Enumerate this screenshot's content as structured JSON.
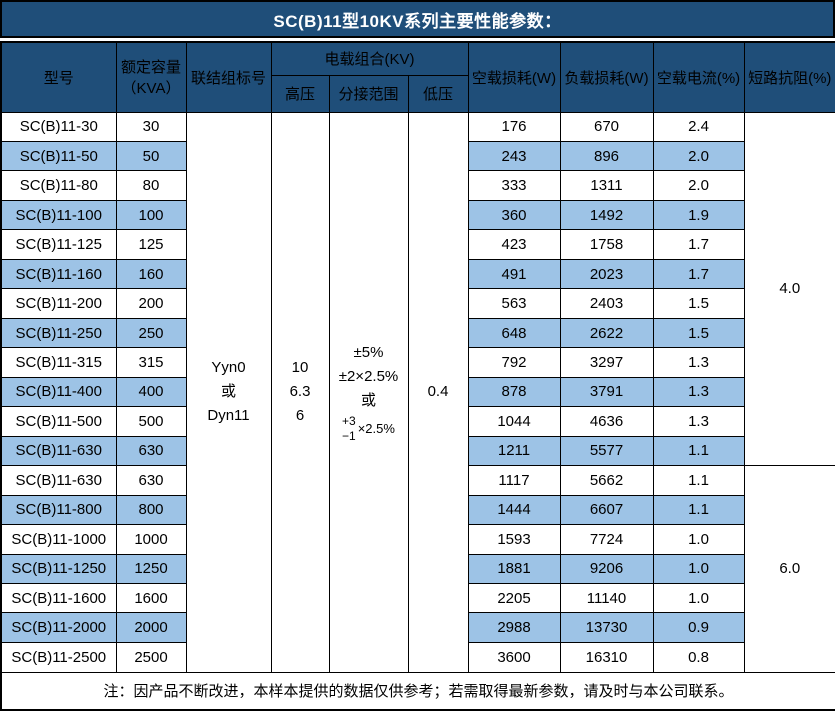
{
  "title": "SC(B)11型10KV系列主要性能参数：",
  "footer_note": "注：因产品不断改进，本样本提供的数据仅供参考；若需取得最新参数，请及时与本公司联系。",
  "colors": {
    "header_bg": "#1F4E79",
    "header_text": "#FFFFFF",
    "band_bg": "#9DC3E6",
    "row_bg": "#FFFFFF",
    "border": "#000000"
  },
  "table": {
    "headers": {
      "model": "型号",
      "capacity_line1": "额定容量",
      "capacity_line2": "（KVA）",
      "connection": "联结组标号",
      "load_combo": "电载组合(KV)",
      "hv": "高压",
      "tap_range": "分接范围",
      "lv": "低压",
      "no_load_loss": "空载损耗(W)",
      "load_loss": "负载损耗(W)",
      "no_load_current": "空载电流(%)",
      "short_circuit_impedance": "短路抗阻(%)"
    },
    "merged": {
      "connection_lines": [
        "Yyn0",
        "或",
        "Dyn11"
      ],
      "hv_lines": [
        "10",
        "6.3",
        "6"
      ],
      "tap_lines": [
        "±5%",
        "±2×2.5%",
        "或"
      ],
      "tap_stacked": {
        "top": "+3",
        "bottom": "−1",
        "suffix": "×2.5%"
      },
      "lv": "0.4"
    },
    "impedance_groups": [
      {
        "value": "4.0",
        "rows": 12
      },
      {
        "value": "6.0",
        "rows": 7
      }
    ],
    "rows": [
      {
        "model": "SC(B)11-30",
        "capacity": "30",
        "no_load_loss": "176",
        "load_loss": "670",
        "no_load_current": "2.4"
      },
      {
        "model": "SC(B)11-50",
        "capacity": "50",
        "no_load_loss": "243",
        "load_loss": "896",
        "no_load_current": "2.0"
      },
      {
        "model": "SC(B)11-80",
        "capacity": "80",
        "no_load_loss": "333",
        "load_loss": "1311",
        "no_load_current": "2.0"
      },
      {
        "model": "SC(B)11-100",
        "capacity": "100",
        "no_load_loss": "360",
        "load_loss": "1492",
        "no_load_current": "1.9"
      },
      {
        "model": "SC(B)11-125",
        "capacity": "125",
        "no_load_loss": "423",
        "load_loss": "1758",
        "no_load_current": "1.7"
      },
      {
        "model": "SC(B)11-160",
        "capacity": "160",
        "no_load_loss": "491",
        "load_loss": "2023",
        "no_load_current": "1.7"
      },
      {
        "model": "SC(B)11-200",
        "capacity": "200",
        "no_load_loss": "563",
        "load_loss": "2403",
        "no_load_current": "1.5"
      },
      {
        "model": "SC(B)11-250",
        "capacity": "250",
        "no_load_loss": "648",
        "load_loss": "2622",
        "no_load_current": "1.5"
      },
      {
        "model": "SC(B)11-315",
        "capacity": "315",
        "no_load_loss": "792",
        "load_loss": "3297",
        "no_load_current": "1.3"
      },
      {
        "model": "SC(B)11-400",
        "capacity": "400",
        "no_load_loss": "878",
        "load_loss": "3791",
        "no_load_current": "1.3"
      },
      {
        "model": "SC(B)11-500",
        "capacity": "500",
        "no_load_loss": "1044",
        "load_loss": "4636",
        "no_load_current": "1.3"
      },
      {
        "model": "SC(B)11-630",
        "capacity": "630",
        "no_load_loss": "1211",
        "load_loss": "5577",
        "no_load_current": "1.1"
      },
      {
        "model": "SC(B)11-630",
        "capacity": "630",
        "no_load_loss": "1117",
        "load_loss": "5662",
        "no_load_current": "1.1"
      },
      {
        "model": "SC(B)11-800",
        "capacity": "800",
        "no_load_loss": "1444",
        "load_loss": "6607",
        "no_load_current": "1.1"
      },
      {
        "model": "SC(B)11-1000",
        "capacity": "1000",
        "no_load_loss": "1593",
        "load_loss": "7724",
        "no_load_current": "1.0"
      },
      {
        "model": "SC(B)11-1250",
        "capacity": "1250",
        "no_load_loss": "1881",
        "load_loss": "9206",
        "no_load_current": "1.0"
      },
      {
        "model": "SC(B)11-1600",
        "capacity": "1600",
        "no_load_loss": "2205",
        "load_loss": "11140",
        "no_load_current": "1.0"
      },
      {
        "model": "SC(B)11-2000",
        "capacity": "2000",
        "no_load_loss": "2988",
        "load_loss": "13730",
        "no_load_current": "0.9"
      },
      {
        "model": "SC(B)11-2500",
        "capacity": "2500",
        "no_load_loss": "3600",
        "load_loss": "16310",
        "no_load_current": "0.8"
      }
    ]
  }
}
